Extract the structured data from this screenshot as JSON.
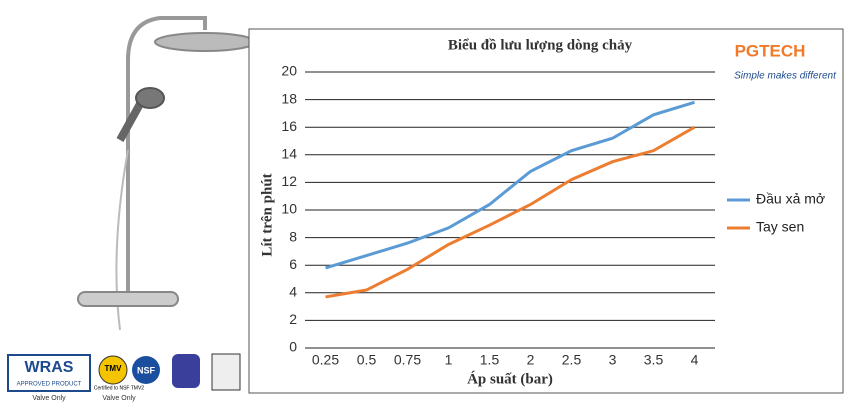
{
  "chart_data": {
    "type": "line",
    "title": "Biểu đồ lưu lượng dòng chảy",
    "x_label": "Áp suất (bar)",
    "y_label": "Lít trên phút",
    "categories": [
      "0.25",
      "0.5",
      "0.75",
      "1",
      "1.5",
      "2",
      "2.5",
      "3",
      "3.5",
      "4"
    ],
    "series": [
      {
        "name": "Đầu xả mở",
        "color": "#5b9bd5",
        "values": [
          5.8,
          6.7,
          7.6,
          8.7,
          10.4,
          12.8,
          14.3,
          15.2,
          16.9,
          17.8
        ]
      },
      {
        "name": "Tay sen",
        "color": "#ed7d31",
        "values": [
          3.7,
          4.2,
          5.7,
          7.5,
          8.9,
          10.4,
          12.2,
          13.5,
          14.3,
          16.0
        ]
      }
    ],
    "ylim": [
      0,
      20
    ],
    "yticks": [
      0,
      2,
      4,
      6,
      8,
      10,
      12,
      14,
      16,
      18,
      20
    ],
    "grid": true,
    "legend": "right"
  },
  "logo": {
    "brand": "PGTECH",
    "tagline": "Simple makes different"
  },
  "badges": {
    "wras": "WRAS",
    "wras_sub": "APPROVED PRODUCT",
    "wras_note": "Valve Only",
    "tmv": "TMV",
    "tmv_sub": "Certified to NSF TMV2",
    "tmv_note": "Valve Only",
    "nsf": "NSF"
  }
}
